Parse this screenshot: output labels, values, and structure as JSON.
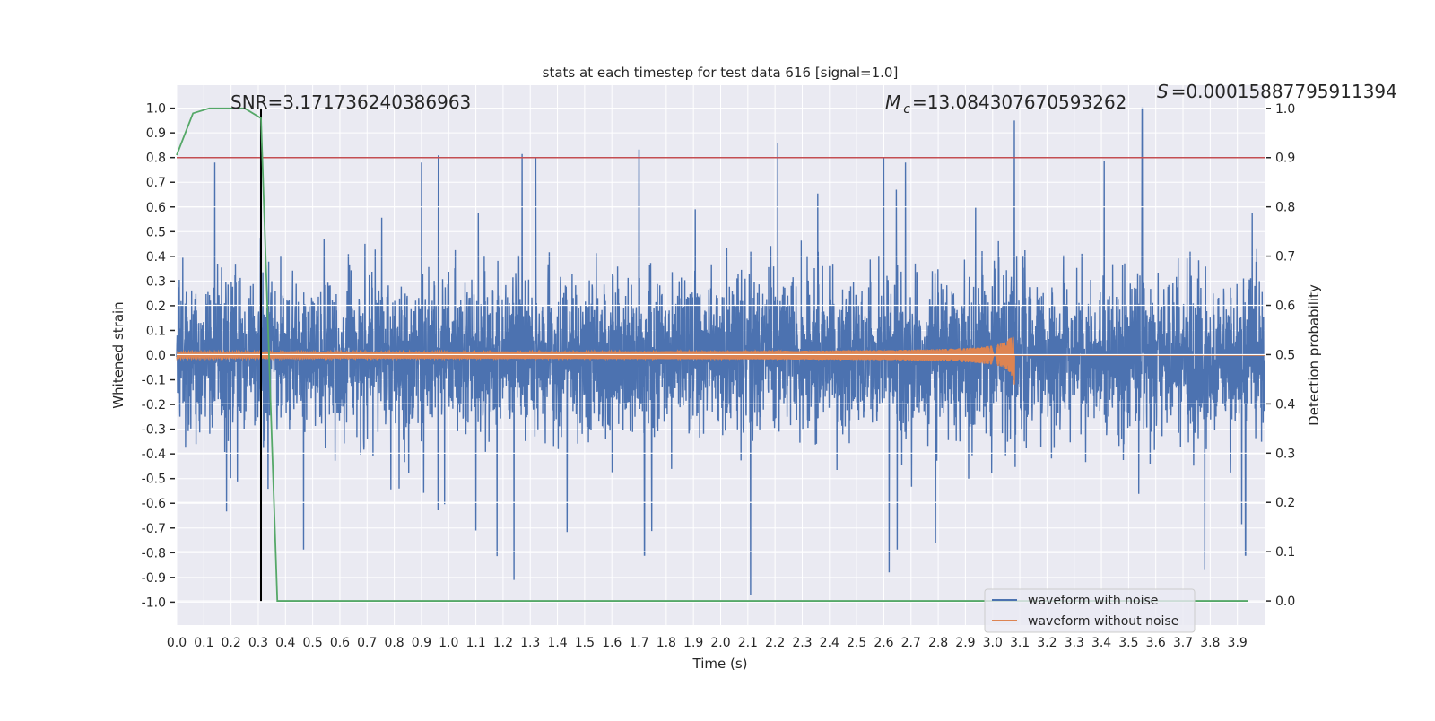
{
  "chart_data": {
    "type": "line",
    "title": "stats at each timestep for test data 616 [signal=1.0]",
    "xlabel": "Time (s)",
    "ylabel": "Whitened strain",
    "y2label": "Detection probability",
    "xlim": [
      0.0,
      4.0
    ],
    "ylim": [
      -1.093,
      1.093
    ],
    "y2lim": [
      -0.049,
      1.047
    ],
    "grid": true,
    "x_ticks": [
      "0.0",
      "0.1",
      "0.2",
      "0.3",
      "0.4",
      "0.5",
      "0.6",
      "0.7",
      "0.8",
      "0.9",
      "1.0",
      "1.1",
      "1.2",
      "1.3",
      "1.4",
      "1.5",
      "1.6",
      "1.7",
      "1.8",
      "1.9",
      "2.0",
      "2.1",
      "2.2",
      "2.3",
      "2.4",
      "2.5",
      "2.6",
      "2.7",
      "2.8",
      "2.9",
      "3.0",
      "3.1",
      "3.2",
      "3.3",
      "3.4",
      "3.5",
      "3.6",
      "3.7",
      "3.8",
      "3.9"
    ],
    "y_ticks": [
      "-1.0",
      "-0.9",
      "-0.8",
      "-0.7",
      "-0.6",
      "-0.5",
      "-0.4",
      "-0.3",
      "-0.2",
      "-0.1",
      "0.0",
      "0.1",
      "0.2",
      "0.3",
      "0.4",
      "0.5",
      "0.6",
      "0.7",
      "0.8",
      "0.9",
      "1.0"
    ],
    "y2_ticks": [
      "0.0",
      "0.1",
      "0.2",
      "0.3",
      "0.4",
      "0.5",
      "0.6",
      "0.7",
      "0.8",
      "0.9",
      "1.0"
    ],
    "annotations": {
      "snr": "SNR=3.171736240386963",
      "mc_symbol": "M",
      "mc_subscript": "c",
      "mc_value": "=13.084307670593262",
      "s_symbol": "S",
      "s_value": "=0.00015887795911394"
    },
    "legend": {
      "placement": "lower-right",
      "entries": [
        "waveform with noise",
        "waveform without noise"
      ]
    },
    "series": [
      {
        "name": "waveform with noise",
        "axis": "left",
        "color": "#4c72b0",
        "generated": {
          "samples": 5000,
          "noise_std": 0.15,
          "seed": 616
        },
        "spikes": [
          [
            0.14,
            0.78
          ],
          [
            0.31,
            0.95
          ],
          [
            0.31,
            -0.5
          ],
          [
            0.9,
            0.78
          ],
          [
            1.1,
            -0.71
          ],
          [
            1.24,
            -0.91
          ],
          [
            1.32,
            0.8
          ],
          [
            1.7,
            0.83
          ],
          [
            1.72,
            -0.81
          ],
          [
            2.11,
            -0.97
          ],
          [
            2.21,
            0.86
          ],
          [
            2.6,
            0.8
          ],
          [
            2.62,
            -0.88
          ],
          [
            2.68,
            0.78
          ],
          [
            3.08,
            0.95
          ],
          [
            3.55,
            1.0
          ],
          [
            3.78,
            -0.87
          ],
          [
            3.93,
            -0.81
          ]
        ]
      },
      {
        "name": "waveform without noise",
        "axis": "left",
        "color": "#dd8452",
        "chirp": {
          "start_amplitude": 0.01,
          "peak_amplitude": 0.12,
          "merger_time": 3.08
        }
      },
      {
        "name": "detection probability",
        "axis": "right",
        "color": "#55a868",
        "x": [
          0.0,
          0.06,
          0.12,
          0.25,
          0.31,
          0.37,
          0.43,
          3.94
        ],
        "y": [
          0.905,
          0.99,
          1.0,
          1.0,
          0.98,
          0.0,
          0.0,
          0.0
        ]
      }
    ],
    "threshold": {
      "axis": "right",
      "value": 0.9,
      "color": "#c44e52"
    },
    "marker_time": {
      "value": 0.31,
      "color": "#000000"
    }
  }
}
